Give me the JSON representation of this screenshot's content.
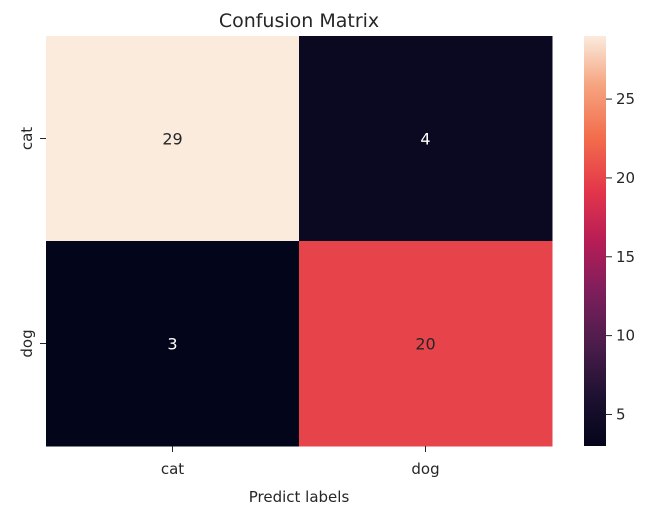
{
  "chart_data": {
    "type": "heatmap",
    "title": "Confusion Matrix",
    "xlabel": "Predict labels",
    "ylabel": "",
    "x_categories": [
      "cat",
      "dog"
    ],
    "y_categories": [
      "cat",
      "dog"
    ],
    "values": [
      [
        29,
        4
      ],
      [
        3,
        20
      ]
    ],
    "colorbar": {
      "min": 3,
      "max": 29,
      "ticks": [
        5,
        10,
        15,
        20,
        25
      ],
      "colormap": "rocket"
    },
    "grid": false,
    "legend": "colorbar-right"
  }
}
